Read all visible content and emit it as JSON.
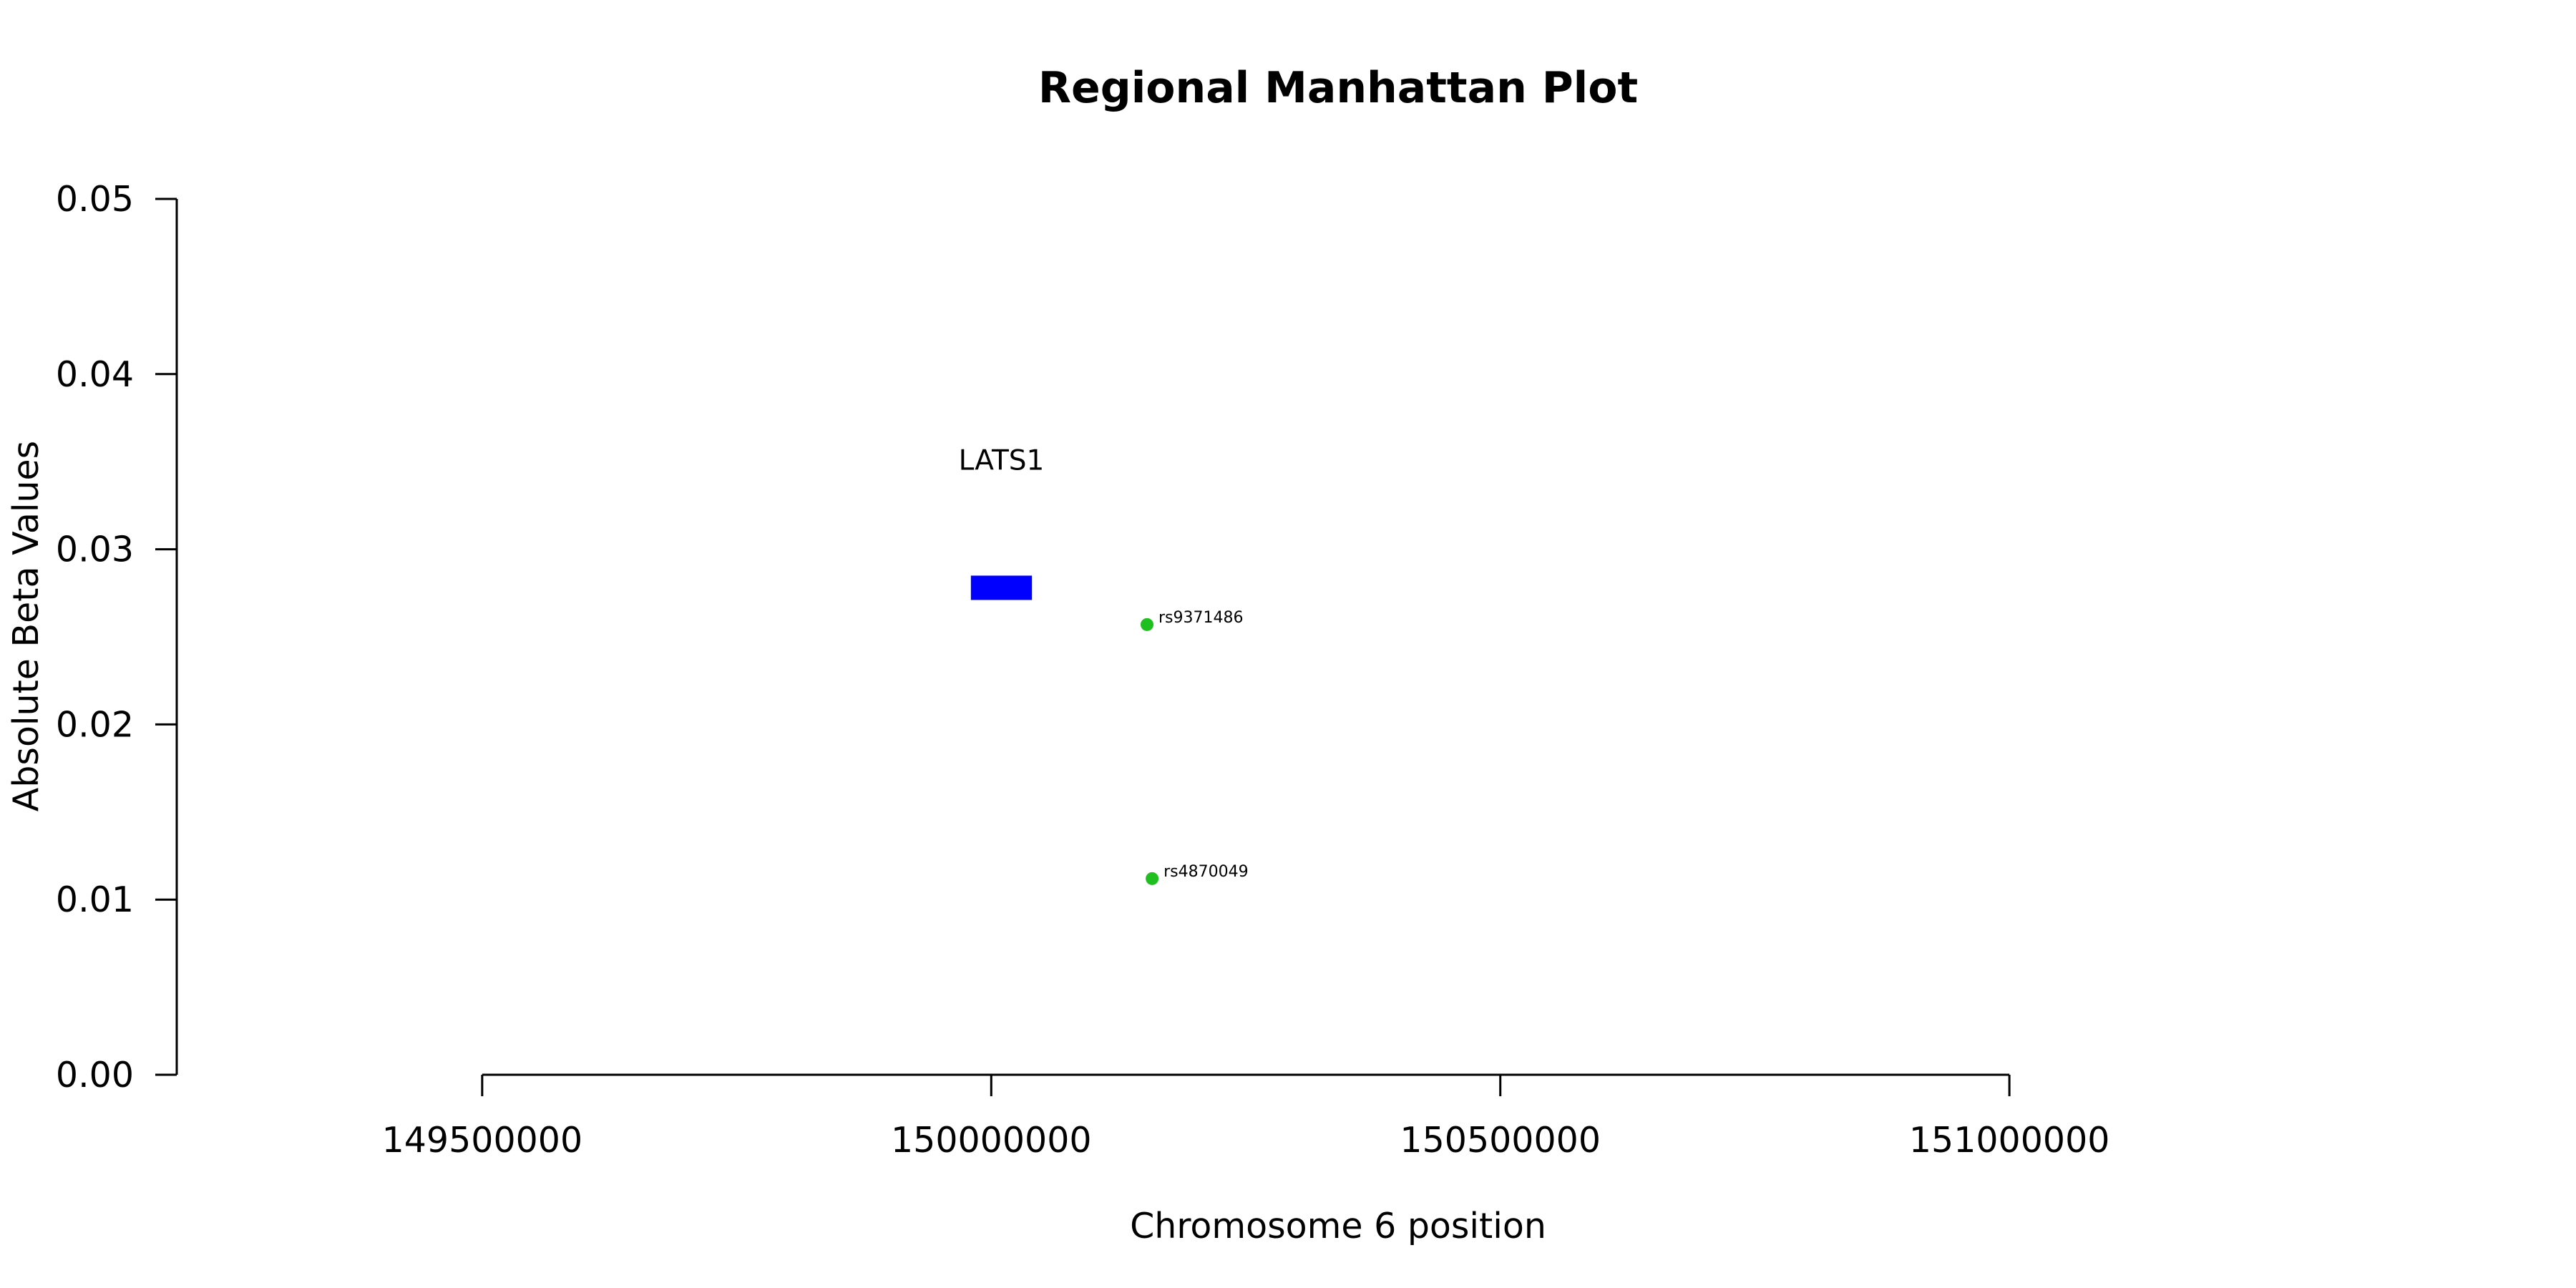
{
  "chart_data": {
    "type": "scatter",
    "title": "Regional Manhattan Plot",
    "xlabel": "Chromosome 6 position",
    "ylabel": "Absolute Beta Values",
    "xlim": [
      149200000,
      151300000
    ],
    "ylim": [
      0.0,
      0.05
    ],
    "xticks": [
      149500000,
      150000000,
      150500000,
      151000000
    ],
    "xtick_labels": [
      "149500000",
      "150000000",
      "150500000",
      "151000000"
    ],
    "yticks": [
      0.0,
      0.01,
      0.02,
      0.03,
      0.04,
      0.05
    ],
    "ytick_labels": [
      "0.00",
      "0.01",
      "0.02",
      "0.03",
      "0.04",
      "0.05"
    ],
    "points": [
      {
        "label": "rs9371486",
        "x": 150153000,
        "y": 0.0257,
        "color": "#1fbf1f"
      },
      {
        "label": "rs4870049",
        "x": 150158000,
        "y": 0.0112,
        "color": "#1fbf1f"
      }
    ],
    "gene": {
      "name": "LATS1",
      "start": 149980000,
      "end": 150040000,
      "y": 0.0278,
      "color": "#0000ff"
    },
    "grid": false
  }
}
